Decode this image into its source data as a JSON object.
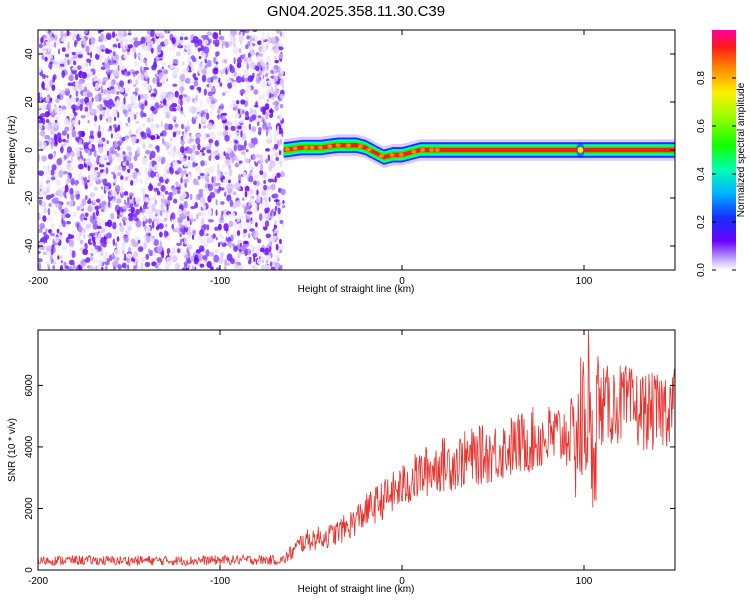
{
  "title": "GN04.2025.358.11.30.C39",
  "chart_data": [
    {
      "type": "heatmap",
      "title": "",
      "xlabel": "Height of straight line (km)",
      "ylabel": "Frequency (Hz)",
      "xlim": [
        -200,
        150
      ],
      "ylim": [
        -50,
        50
      ],
      "xticks": [
        -200,
        -100,
        0,
        100
      ],
      "yticks": [
        -40,
        -20,
        0,
        20,
        40
      ],
      "xtick_labels": [
        "-200",
        "-100",
        "0",
        "100"
      ],
      "ytick_labels": [
        "-40",
        "-20",
        "0",
        "20",
        "40"
      ],
      "noise_region_x": [
        -200,
        -65
      ],
      "signal_track": {
        "x": [
          -65,
          -55,
          -45,
          -35,
          -25,
          -20,
          -15,
          -10,
          -5,
          0,
          5,
          10,
          20,
          40,
          60,
          80,
          95,
          100,
          120,
          150
        ],
        "freq": [
          0,
          1,
          1,
          2,
          2,
          1,
          -1,
          -3,
          -2,
          -2,
          -1,
          0,
          0,
          0,
          0,
          0,
          0,
          0,
          0,
          0
        ]
      },
      "colorbar": {
        "label": "Normalized spectral amplitude",
        "range": [
          0.0,
          1.0
        ],
        "ticks": [
          0.0,
          0.2,
          0.4,
          0.6,
          0.8
        ],
        "tick_labels": [
          "0.0",
          "0.2",
          "0.4",
          "0.6",
          "0.8"
        ]
      }
    },
    {
      "type": "line",
      "title": "",
      "xlabel": "Height of straight line (km)",
      "ylabel": "SNR (10 * v/v)",
      "xlim": [
        -200,
        150
      ],
      "ylim": [
        0,
        7800
      ],
      "xticks": [
        -200,
        -100,
        0,
        100
      ],
      "yticks": [
        0,
        2000,
        4000,
        6000
      ],
      "xtick_labels": [
        "-200",
        "-100",
        "0",
        "100"
      ],
      "ytick_labels": [
        "0",
        "2000",
        "4000",
        "6000"
      ],
      "series": [
        {
          "name": "SNR",
          "color": "#e8312c",
          "x": [
            -200,
            -180,
            -160,
            -140,
            -120,
            -100,
            -80,
            -65,
            -60,
            -55,
            -50,
            -40,
            -30,
            -20,
            -10,
            0,
            10,
            20,
            30,
            40,
            50,
            60,
            70,
            80,
            90,
            95,
            100,
            102,
            104,
            106,
            110,
            120,
            130,
            140,
            150
          ],
          "y": [
            300,
            320,
            300,
            310,
            300,
            320,
            330,
            320,
            600,
            900,
            1000,
            1100,
            1400,
            1900,
            2300,
            2700,
            3100,
            3400,
            3500,
            3700,
            3800,
            4000,
            4200,
            4300,
            4400,
            4500,
            4700,
            6000,
            3200,
            4900,
            5300,
            5400,
            5200,
            5100,
            5500
          ]
        }
      ]
    }
  ]
}
